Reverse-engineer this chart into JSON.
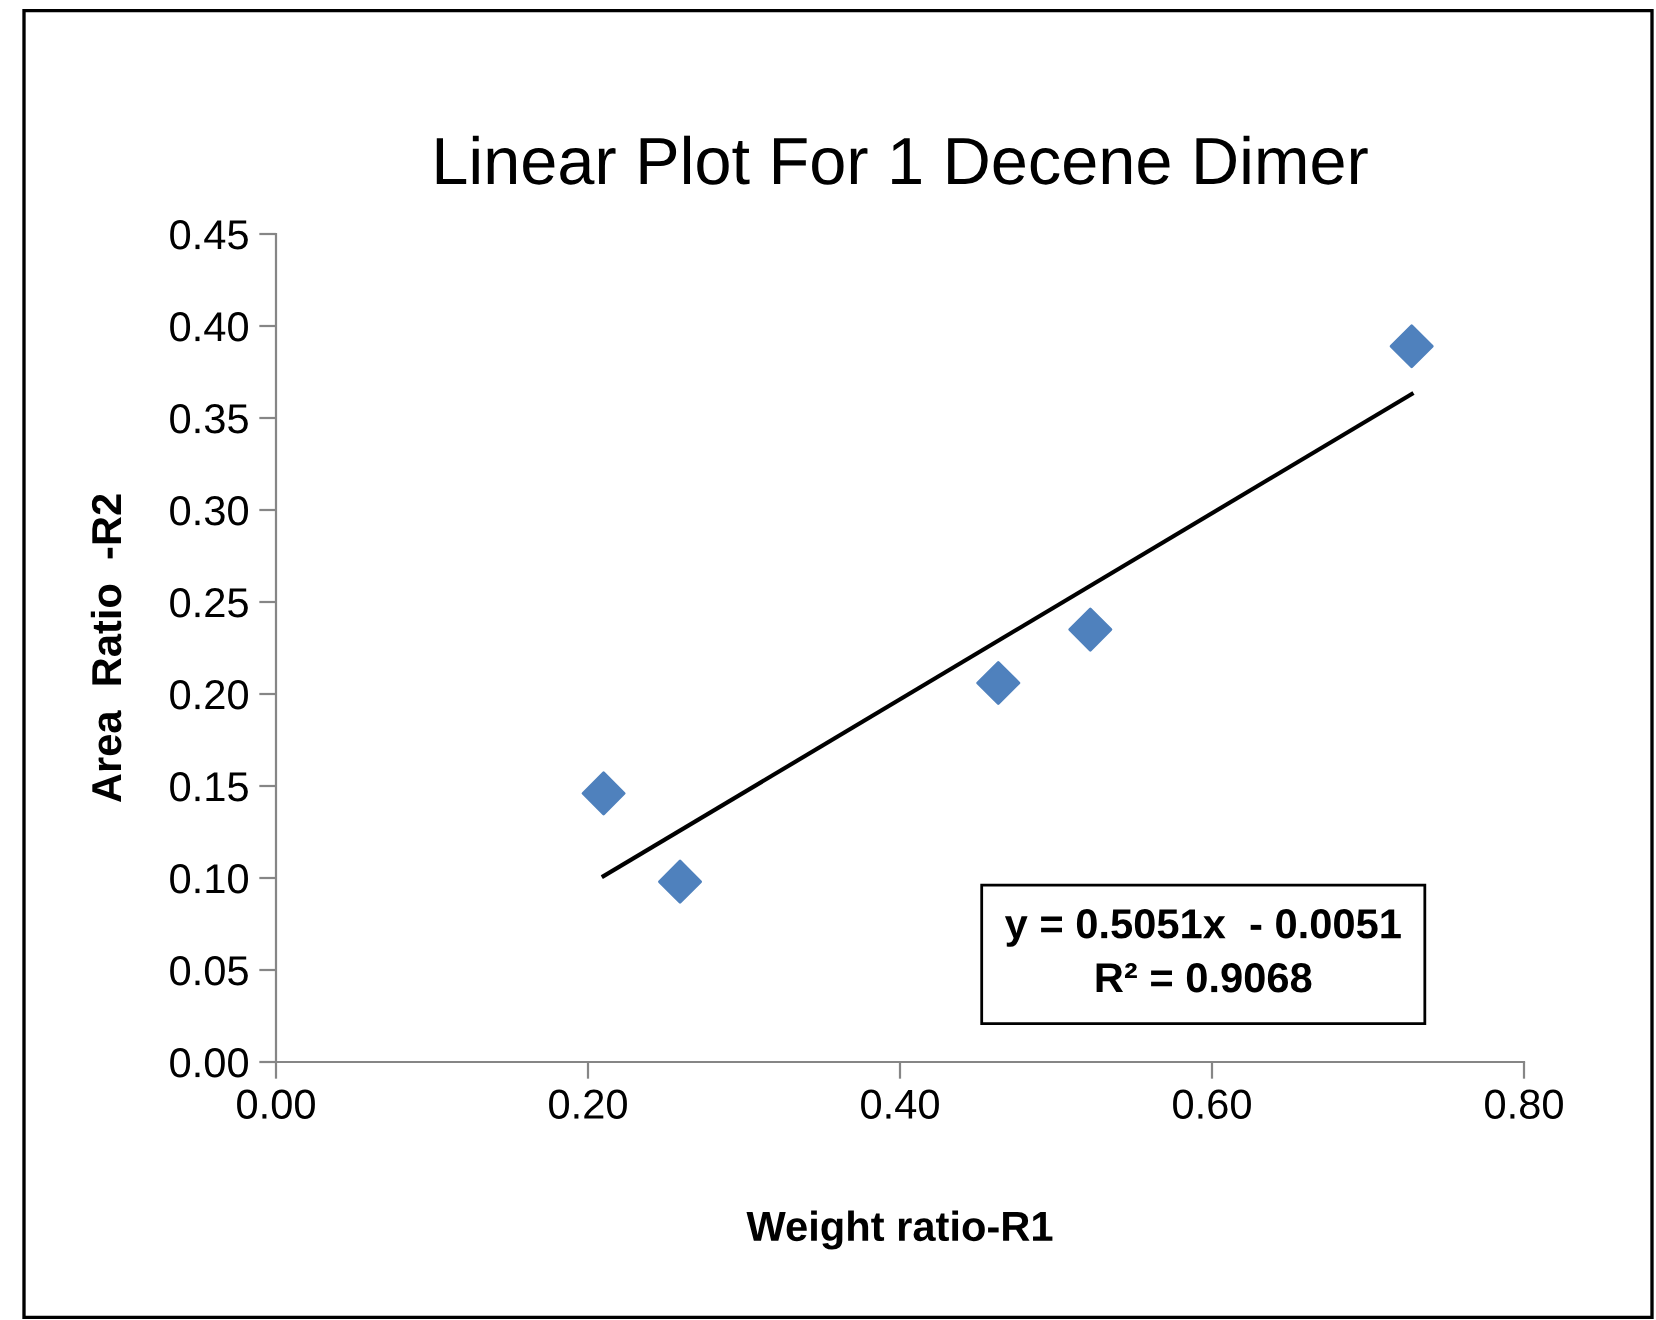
{
  "chart_data": {
    "type": "scatter",
    "title": "Linear Plot For 1 Decene Dimer",
    "xlabel": "Weight ratio-R1",
    "ylabel": "Area  Ratio  -R2",
    "series": [
      {
        "color": "#4f81bd",
        "marker": "diamond",
        "x": [
          0.21,
          0.259,
          0.463,
          0.522,
          0.728
        ],
        "values": [
          0.146,
          0.098,
          0.206,
          0.235,
          0.389
        ]
      },
      {
        "type": "line",
        "color": "#000000",
        "marker": "none",
        "line_style": "solid",
        "x": [
          0.21,
          0.728
        ],
        "values": [
          0.101,
          0.363
        ]
      }
    ],
    "annotations": [
      "y = 0.5051x  - 0.0051\nR² = 0.9068"
    ],
    "xlim": [
      0,
      0.8
    ],
    "xticks": [
      {
        "value": 0,
        "label": "0.00"
      },
      {
        "value": 0.2,
        "label": "0.20"
      },
      {
        "value": 0.4,
        "label": "0.40"
      },
      {
        "value": 0.6,
        "label": "0.60"
      },
      {
        "value": 0.8,
        "label": "0.80"
      }
    ],
    "ylim": [
      0,
      0.45
    ],
    "yticks": [
      {
        "value": 0,
        "label": "0.00"
      },
      {
        "value": 0.05,
        "label": "0.05"
      },
      {
        "value": 0.1,
        "label": "0.10"
      },
      {
        "value": 0.15,
        "label": "0.15"
      },
      {
        "value": 0.2,
        "label": "0.20"
      },
      {
        "value": 0.25,
        "label": "0.25"
      },
      {
        "value": 0.3,
        "label": "0.30"
      },
      {
        "value": 0.35,
        "label": "0.35"
      },
      {
        "value": 0.4,
        "label": "0.40"
      },
      {
        "value": 0.45,
        "label": "0.45"
      }
    ],
    "grid": false
  }
}
